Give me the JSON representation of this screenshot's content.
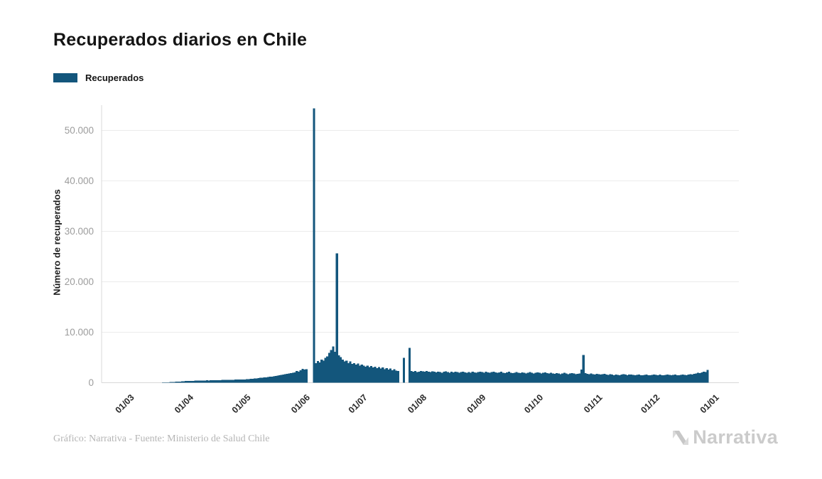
{
  "header": {
    "title": "Recuperados diarios en Chile"
  },
  "legend": {
    "items": [
      {
        "label": "Recuperados",
        "color": "#13567c"
      }
    ]
  },
  "footer": {
    "credit": "Gráfico: Narrativa - Fuente: Ministerio de Salud Chile"
  },
  "brand": {
    "name": "Narrativa",
    "color": "#cbcbcb"
  },
  "colors": {
    "bar": "#13567c",
    "grid": "#ebebeb",
    "axis": "#d8d8d8",
    "y_tick_label": "#9c9c9c",
    "x_tick_label": "#2a2a2a",
    "title": "#141414",
    "credit": "#b5b5b5"
  },
  "chart_data": {
    "type": "bar",
    "title": "Recuperados diarios en Chile",
    "xlabel": "",
    "ylabel": "Número de recuperados",
    "legend_position": "top-left",
    "grid": "horizontal",
    "ylim": [
      0,
      55000
    ],
    "y_ticks": {
      "values": [
        0,
        10000,
        20000,
        30000,
        40000,
        50000
      ],
      "labels": [
        "0",
        "10.000",
        "20.000",
        "30.000",
        "40.000",
        "50.000"
      ]
    },
    "x_tick_labels": [
      "01/03",
      "01/04",
      "01/05",
      "01/06",
      "01/07",
      "01/08",
      "01/09",
      "01/10",
      "01/11",
      "01/12",
      "01/01"
    ],
    "series": [
      {
        "name": "Recuperados",
        "color": "#13567c",
        "daily_values_by_month": [
          {
            "month_tick": "01/03",
            "values": [
              0,
              0,
              0,
              0,
              0,
              0,
              0,
              0,
              2,
              4,
              6,
              8,
              10,
              14,
              18,
              25,
              35,
              45,
              60,
              75,
              95,
              115,
              135,
              155,
              180,
              210,
              240,
              270,
              300,
              330,
              360
            ]
          },
          {
            "month_tick": "01/04",
            "values": [
              370,
              355,
              385,
              400,
              390,
              415,
              430,
              420,
              445,
              460,
              450,
              475,
              490,
              480,
              505,
              520,
              510,
              535,
              550,
              540,
              565,
              580,
              570,
              595,
              610,
              600,
              625,
              640,
              630,
              655
            ]
          },
          {
            "month_tick": "01/05",
            "values": [
              700,
              735,
              770,
              805,
              840,
              875,
              915,
              955,
              995,
              1040,
              1085,
              1130,
              1180,
              1230,
              1285,
              1340,
              1400,
              1460,
              1525,
              1590,
              1660,
              1735,
              1810,
              1890,
              1975,
              2060,
              2300,
              2150,
              2500,
              2750,
              2600
            ]
          },
          {
            "month_tick": "01/06",
            "values": [
              2700,
              0,
              0,
              0,
              54400,
              3900,
              4300,
              4000,
              4600,
              4400,
              4900,
              5200,
              5900,
              6500,
              7200,
              6100,
              25600,
              5400,
              5100,
              4600,
              4200,
              4400,
              3900,
              4200,
              3700,
              3900,
              3600,
              3800,
              3400,
              3600
            ]
          },
          {
            "month_tick": "01/07",
            "values": [
              3400,
              3200,
              3400,
              3100,
              3300,
              3000,
              3200,
              2900,
              3100,
              2800,
              3000,
              2700,
              2900,
              2600,
              2800,
              2500,
              2700,
              2400,
              2300,
              0,
              0,
              4900,
              0,
              0,
              6900,
              2300,
              2200,
              2300,
              2100,
              2200,
              2300
            ]
          },
          {
            "month_tick": "01/08",
            "values": [
              2250,
              2150,
              2300,
              2200,
              2100,
              2250,
              2150,
              2050,
              2200,
              2100,
              2000,
              2150,
              2250,
              2100,
              2000,
              2150,
              2050,
              2200,
              2100,
              2000,
              2100,
              2200,
              2050,
              1950,
              2100,
              2000,
              2150,
              2050,
              1950,
              2100,
              2200
            ]
          },
          {
            "month_tick": "01/09",
            "values": [
              2100,
              2000,
              2150,
              2050,
              1950,
              2100,
              2200,
              2050,
              1950,
              2050,
              2150,
              2000,
              1900,
              2050,
              2150,
              2000,
              1900,
              1950,
              2100,
              2000,
              1900,
              2050,
              1950,
              1850,
              2000,
              2100,
              1950,
              1850,
              1950,
              2050
            ]
          },
          {
            "month_tick": "01/10",
            "values": [
              1950,
              1850,
              1950,
              2050,
              1900,
              1800,
              1950,
              1850,
              1750,
              1900,
              1800,
              1700,
              1850,
              1950,
              1800,
              1700,
              1800,
              1900,
              1800,
              1700,
              1750,
              1850,
              2600,
              5500,
              1900,
              1750,
              1700,
              1800,
              1700,
              1650,
              1750
            ]
          },
          {
            "month_tick": "01/11",
            "values": [
              1700,
              1600,
              1700,
              1750,
              1650,
              1550,
              1700,
              1600,
              1500,
              1650,
              1550,
              1500,
              1600,
              1700,
              1600,
              1500,
              1600,
              1650,
              1550,
              1450,
              1550,
              1600,
              1500,
              1450,
              1550,
              1650,
              1500,
              1450,
              1550,
              1600
            ]
          },
          {
            "month_tick": "01/12",
            "values": [
              1550,
              1500,
              1600,
              1500,
              1450,
              1550,
              1650,
              1550,
              1500,
              1550,
              1650,
              1500,
              1450,
              1550,
              1650,
              1550,
              1500,
              1600,
              1700,
              1650,
              1750,
              1850,
              1950,
              1900,
              2050,
              2200,
              2100,
              2550
            ]
          }
        ]
      }
    ]
  }
}
